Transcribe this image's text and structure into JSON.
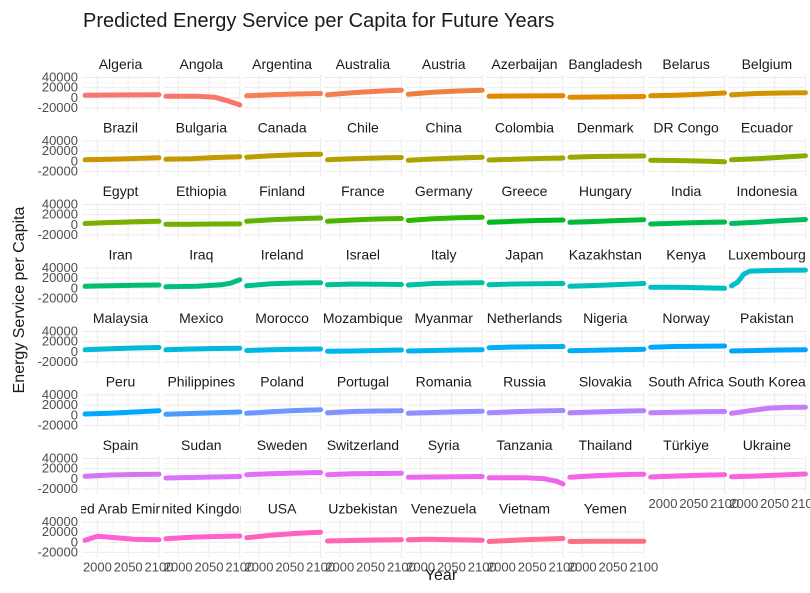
{
  "chart_data": {
    "type": "line",
    "title": "Predicted Energy Service per Capita for Future Years",
    "xlabel": "Year",
    "ylabel": "Energy Service per Capita",
    "xlim": [
      1975,
      2100
    ],
    "ylim": [
      -30000,
      45000
    ],
    "x_ticks": [
      2000,
      2050,
      2100
    ],
    "x_tick_labels": [
      "2000",
      "2050",
      "2100"
    ],
    "y_ticks": [
      -20000,
      0,
      20000,
      40000
    ],
    "y_tick_labels": [
      "-20000",
      "0",
      "20000",
      "40000"
    ],
    "legend": "none",
    "grid": true,
    "series": [
      {
        "label": "Algeria",
        "color": "#F8766D",
        "x": [
          1980,
          2020,
          2060,
          2100
        ],
        "y": [
          5000,
          5500,
          5800,
          6000
        ]
      },
      {
        "label": "Angola",
        "color": "#F8766D",
        "x": [
          1980,
          2030,
          2060,
          2080,
          2100
        ],
        "y": [
          3000,
          3000,
          1000,
          -6000,
          -14000
        ]
      },
      {
        "label": "Argentina",
        "color": "#F67F55",
        "x": [
          1980,
          2020,
          2060,
          2100
        ],
        "y": [
          4000,
          6000,
          7500,
          8500
        ]
      },
      {
        "label": "Australia",
        "color": "#F27F52",
        "x": [
          1980,
          2020,
          2060,
          2100
        ],
        "y": [
          6000,
          10000,
          13000,
          15000
        ]
      },
      {
        "label": "Austria",
        "color": "#ED813E",
        "x": [
          1980,
          2020,
          2060,
          2100
        ],
        "y": [
          7000,
          11000,
          13500,
          15000
        ]
      },
      {
        "label": "Azerbaijan",
        "color": "#E58700",
        "x": [
          1980,
          2020,
          2060,
          2100
        ],
        "y": [
          3000,
          3500,
          3800,
          4000
        ]
      },
      {
        "label": "Bangladesh",
        "color": "#E08B00",
        "x": [
          1980,
          2020,
          2060,
          2100
        ],
        "y": [
          1000,
          1500,
          2000,
          2500
        ]
      },
      {
        "label": "Belarus",
        "color": "#D89000",
        "x": [
          1980,
          2020,
          2060,
          2100
        ],
        "y": [
          4000,
          5000,
          7000,
          9500
        ]
      },
      {
        "label": "Belgium",
        "color": "#D19300",
        "x": [
          1980,
          2020,
          2060,
          2100
        ],
        "y": [
          6000,
          8500,
          9500,
          10000
        ]
      },
      {
        "label": "Brazil",
        "color": "#CC9600",
        "x": [
          1980,
          2020,
          2060,
          2100
        ],
        "y": [
          3000,
          4000,
          5500,
          7000
        ]
      },
      {
        "label": "Bulgaria",
        "color": "#C49A00",
        "x": [
          1980,
          2020,
          2060,
          2100
        ],
        "y": [
          4000,
          5000,
          7500,
          9000
        ]
      },
      {
        "label": "Canada",
        "color": "#BB9D00",
        "x": [
          1980,
          2020,
          2060,
          2100
        ],
        "y": [
          8000,
          11000,
          13000,
          14000
        ]
      },
      {
        "label": "Chile",
        "color": "#B3A000",
        "x": [
          1980,
          2020,
          2060,
          2100
        ],
        "y": [
          3000,
          5000,
          6500,
          7500
        ]
      },
      {
        "label": "China",
        "color": "#ABA300",
        "x": [
          1980,
          2020,
          2060,
          2100
        ],
        "y": [
          2000,
          4500,
          6500,
          8000
        ]
      },
      {
        "label": "Colombia",
        "color": "#A3A500",
        "x": [
          1980,
          2020,
          2060,
          2100
        ],
        "y": [
          2500,
          4000,
          5500,
          6500
        ]
      },
      {
        "label": "Denmark",
        "color": "#99A800",
        "x": [
          1980,
          2020,
          2060,
          2100
        ],
        "y": [
          8000,
          9500,
          10000,
          10500
        ]
      },
      {
        "label": "DR Congo",
        "color": "#8EAB00",
        "x": [
          1980,
          2020,
          2060,
          2100
        ],
        "y": [
          2000,
          1500,
          500,
          -1000
        ]
      },
      {
        "label": "Ecuador",
        "color": "#85AD00",
        "x": [
          1980,
          2020,
          2060,
          2100
        ],
        "y": [
          3000,
          5000,
          8000,
          11000
        ]
      },
      {
        "label": "Egypt",
        "color": "#7CAE00",
        "x": [
          1980,
          2020,
          2060,
          2100
        ],
        "y": [
          2500,
          4500,
          6000,
          7000
        ]
      },
      {
        "label": "Ethiopia",
        "color": "#6FB000",
        "x": [
          1980,
          2020,
          2060,
          2100
        ],
        "y": [
          1000,
          1200,
          1500,
          1800
        ]
      },
      {
        "label": "Finland",
        "color": "#5EB300",
        "x": [
          1980,
          2020,
          2060,
          2100
        ],
        "y": [
          7000,
          10000,
          12000,
          13500
        ]
      },
      {
        "label": "France",
        "color": "#4AB500",
        "x": [
          1980,
          2020,
          2060,
          2100
        ],
        "y": [
          7000,
          9500,
          11500,
          12500
        ]
      },
      {
        "label": "Germany",
        "color": "#2EB700",
        "x": [
          1980,
          2020,
          2060,
          2100
        ],
        "y": [
          8500,
          12000,
          14000,
          15000
        ]
      },
      {
        "label": "Greece",
        "color": "#00B81F",
        "x": [
          1980,
          2020,
          2060,
          2100
        ],
        "y": [
          5000,
          7000,
          8500,
          9500
        ]
      },
      {
        "label": "Hungary",
        "color": "#00BA38",
        "x": [
          1980,
          2020,
          2060,
          2100
        ],
        "y": [
          5000,
          6500,
          8500,
          10000
        ]
      },
      {
        "label": "India",
        "color": "#00BB4E",
        "x": [
          1980,
          2020,
          2060,
          2100
        ],
        "y": [
          1500,
          3000,
          4500,
          5500
        ]
      },
      {
        "label": "Indonesia",
        "color": "#00BC5E",
        "x": [
          1980,
          2020,
          2060,
          2100
        ],
        "y": [
          2500,
          5000,
          8000,
          10500
        ]
      },
      {
        "label": "Iran",
        "color": "#00BE6C",
        "x": [
          1980,
          2020,
          2060,
          2100
        ],
        "y": [
          4000,
          5000,
          6000,
          6500
        ]
      },
      {
        "label": "Iraq",
        "color": "#00BF7D",
        "x": [
          1980,
          2030,
          2070,
          2085,
          2100
        ],
        "y": [
          3000,
          4000,
          7000,
          10000,
          17000
        ]
      },
      {
        "label": "Ireland",
        "color": "#00C08B",
        "x": [
          1980,
          2020,
          2060,
          2100
        ],
        "y": [
          5000,
          9000,
          10500,
          11000
        ]
      },
      {
        "label": "Israel",
        "color": "#00C097",
        "x": [
          1980,
          2020,
          2060,
          2100
        ],
        "y": [
          7000,
          8500,
          8000,
          7500
        ]
      },
      {
        "label": "Italy",
        "color": "#00C1A3",
        "x": [
          1980,
          2020,
          2060,
          2100
        ],
        "y": [
          6500,
          9500,
          10500,
          11000
        ]
      },
      {
        "label": "Japan",
        "color": "#00C1AB",
        "x": [
          1980,
          2020,
          2060,
          2100
        ],
        "y": [
          7000,
          8500,
          9000,
          9500
        ]
      },
      {
        "label": "Kazakhstan",
        "color": "#00C0B8",
        "x": [
          1980,
          2020,
          2060,
          2100
        ],
        "y": [
          4000,
          5500,
          7500,
          9500
        ]
      },
      {
        "label": "Kenya",
        "color": "#00BFC4",
        "x": [
          1980,
          2020,
          2060,
          2100
        ],
        "y": [
          2000,
          2000,
          1000,
          0
        ]
      },
      {
        "label": "Luxembourg",
        "color": "#00BDD0",
        "x": [
          1980,
          1990,
          2000,
          2010,
          2040,
          2070,
          2100
        ],
        "y": [
          5000,
          12000,
          28000,
          34000,
          35000,
          35500,
          36000
        ]
      },
      {
        "label": "Malaysia",
        "color": "#00BCD8",
        "x": [
          1980,
          2020,
          2060,
          2100
        ],
        "y": [
          4000,
          6000,
          7500,
          8500
        ]
      },
      {
        "label": "Mexico",
        "color": "#00BADE",
        "x": [
          1980,
          2020,
          2060,
          2100
        ],
        "y": [
          4000,
          5500,
          6500,
          7000
        ]
      },
      {
        "label": "Morocco",
        "color": "#00B8E5",
        "x": [
          1980,
          2020,
          2060,
          2100
        ],
        "y": [
          2500,
          4000,
          5000,
          5500
        ]
      },
      {
        "label": "Mozambique",
        "color": "#00B5EB",
        "x": [
          1980,
          2020,
          2060,
          2100
        ],
        "y": [
          1000,
          1500,
          2500,
          3500
        ]
      },
      {
        "label": "Myanmar",
        "color": "#00B2F0",
        "x": [
          1980,
          2020,
          2060,
          2100
        ],
        "y": [
          1500,
          2500,
          3500,
          4000
        ]
      },
      {
        "label": "Netherlands",
        "color": "#00AFF4",
        "x": [
          1980,
          2020,
          2060,
          2100
        ],
        "y": [
          8000,
          9500,
          10000,
          10500
        ]
      },
      {
        "label": "Nigeria",
        "color": "#00ABF8",
        "x": [
          1980,
          2020,
          2060,
          2100
        ],
        "y": [
          2000,
          3000,
          4000,
          5000
        ]
      },
      {
        "label": "Norway",
        "color": "#00A5FF",
        "x": [
          1980,
          2020,
          2060,
          2100
        ],
        "y": [
          9000,
          10500,
          11000,
          11500
        ]
      },
      {
        "label": "Pakistan",
        "color": "#00A5FF",
        "x": [
          1980,
          2020,
          2060,
          2100
        ],
        "y": [
          1500,
          2500,
          3500,
          4000
        ]
      },
      {
        "label": "Peru",
        "color": "#00A9FF",
        "x": [
          1980,
          2020,
          2060,
          2100
        ],
        "y": [
          2500,
          4000,
          6500,
          9000
        ]
      },
      {
        "label": "Philippines",
        "color": "#4C9CFF",
        "x": [
          1980,
          2020,
          2060,
          2100
        ],
        "y": [
          2000,
          3500,
          5000,
          6500
        ]
      },
      {
        "label": "Poland",
        "color": "#6D97FF",
        "x": [
          1980,
          2020,
          2060,
          2100
        ],
        "y": [
          4000,
          7000,
          9500,
          11000
        ]
      },
      {
        "label": "Portugal",
        "color": "#8391FF",
        "x": [
          1980,
          2020,
          2060,
          2100
        ],
        "y": [
          5000,
          7500,
          8500,
          9000
        ]
      },
      {
        "label": "Romania",
        "color": "#948DFF",
        "x": [
          1980,
          2020,
          2060,
          2100
        ],
        "y": [
          4000,
          5500,
          7000,
          8000
        ]
      },
      {
        "label": "Russia",
        "color": "#A688FF",
        "x": [
          1980,
          2020,
          2060,
          2100
        ],
        "y": [
          5000,
          7000,
          8500,
          9500
        ]
      },
      {
        "label": "Slovakia",
        "color": "#B383FF",
        "x": [
          1980,
          2020,
          2060,
          2100
        ],
        "y": [
          5000,
          6500,
          8000,
          9000
        ]
      },
      {
        "label": "South Africa",
        "color": "#BF80FF",
        "x": [
          1980,
          2020,
          2060,
          2100
        ],
        "y": [
          5000,
          6000,
          7000,
          7500
        ]
      },
      {
        "label": "South Korea",
        "color": "#C97CF5",
        "x": [
          1980,
          2010,
          2040,
          2070,
          2100
        ],
        "y": [
          4000,
          9000,
          14000,
          15500,
          16000
        ]
      },
      {
        "label": "Spain",
        "color": "#D277F0",
        "x": [
          1980,
          2020,
          2060,
          2100
        ],
        "y": [
          5000,
          7500,
          8500,
          9000
        ]
      },
      {
        "label": "Sudan",
        "color": "#DB72FB",
        "x": [
          1980,
          2020,
          2060,
          2100
        ],
        "y": [
          1500,
          2500,
          3500,
          4500
        ]
      },
      {
        "label": "Sweden",
        "color": "#E26EF7",
        "x": [
          1980,
          2020,
          2060,
          2100
        ],
        "y": [
          8000,
          10000,
          11500,
          12500
        ]
      },
      {
        "label": "Switzerland",
        "color": "#E76BF3",
        "x": [
          1980,
          2020,
          2060,
          2100
        ],
        "y": [
          8000,
          10000,
          10500,
          11000
        ]
      },
      {
        "label": "Syria",
        "color": "#EC69EF",
        "x": [
          1980,
          2020,
          2060,
          2100
        ],
        "y": [
          3000,
          3500,
          4000,
          4500
        ]
      },
      {
        "label": "Tanzania",
        "color": "#F066EA",
        "x": [
          1980,
          2040,
          2070,
          2090,
          2100
        ],
        "y": [
          2000,
          2000,
          0,
          -5000,
          -10000
        ]
      },
      {
        "label": "Thailand",
        "color": "#F464E5",
        "x": [
          1980,
          2020,
          2060,
          2100
        ],
        "y": [
          3000,
          6000,
          8000,
          9000
        ]
      },
      {
        "label": "Türkiye",
        "color": "#F763E0",
        "x": [
          1980,
          2020,
          2060,
          2100
        ],
        "y": [
          3500,
          5500,
          7000,
          8000
        ]
      },
      {
        "label": "Ukraine",
        "color": "#FA62DB",
        "x": [
          1980,
          2020,
          2060,
          2100
        ],
        "y": [
          4000,
          5500,
          7500,
          9500
        ]
      },
      {
        "label": "United Arab Emirates",
        "color": "#FC61D5",
        "x": [
          1980,
          2000,
          2030,
          2060,
          2100
        ],
        "y": [
          4000,
          12000,
          9000,
          6000,
          5000
        ]
      },
      {
        "label": "United Kingdom",
        "color": "#FF61CC",
        "x": [
          1980,
          2020,
          2060,
          2100
        ],
        "y": [
          7000,
          10000,
          11500,
          12500
        ]
      },
      {
        "label": "USA",
        "color": "#FF62BC",
        "x": [
          1980,
          2020,
          2060,
          2100
        ],
        "y": [
          9000,
          14000,
          17500,
          20000
        ]
      },
      {
        "label": "Uzbekistan",
        "color": "#FF64B0",
        "x": [
          1980,
          2020,
          2060,
          2100
        ],
        "y": [
          2500,
          3500,
          4500,
          5000
        ]
      },
      {
        "label": "Venezuela",
        "color": "#FF67A4",
        "x": [
          1980,
          2010,
          2050,
          2100
        ],
        "y": [
          5000,
          6000,
          5000,
          4000
        ]
      },
      {
        "label": "Vietnam",
        "color": "#FF6C91",
        "x": [
          1980,
          2020,
          2060,
          2100
        ],
        "y": [
          1500,
          4000,
          6000,
          7500
        ]
      },
      {
        "label": "Yemen",
        "color": "#FC717F",
        "x": [
          1980,
          2020,
          2060,
          2100
        ],
        "y": [
          1500,
          2000,
          2000,
          2000
        ]
      }
    ]
  }
}
